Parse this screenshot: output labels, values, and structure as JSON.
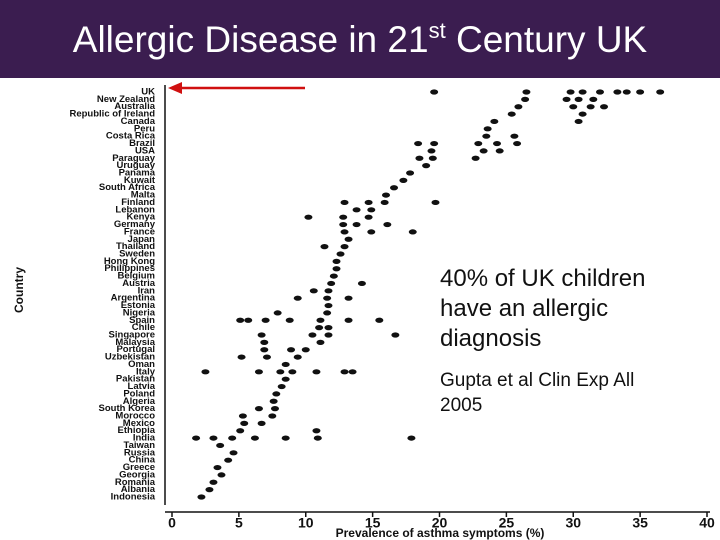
{
  "title_parts": [
    "Allergic Disease in 21",
    "st",
    "Century UK"
  ],
  "annotation": "40% of UK children have an allergic diagnosis",
  "citation": "Gupta et al Clin Exp All 2005",
  "chart_data": {
    "type": "scatter",
    "x_label": "Prevalence of asthma symptoms (%)",
    "y_label": "Country",
    "color": "#111111",
    "xlim": [
      0,
      40
    ],
    "xticks": [
      0,
      5,
      10,
      15,
      20,
      25,
      30,
      35,
      40
    ],
    "categories": [
      "UK",
      "New Zealand",
      "Australia",
      "Republic of Ireland",
      "Canada",
      "Peru",
      "Costa Rica",
      "Brazil",
      "USA",
      "Paraguay",
      "Uruguay",
      "Panama",
      "Kuwait",
      "South Africa",
      "Malta",
      "Finland",
      "Lebanon",
      "Kenya",
      "Germany",
      "France",
      "Japan",
      "Thailand",
      "Sweden",
      "Hong Kong",
      "Philippines",
      "Belgium",
      "Austria",
      "Iran",
      "Argentina",
      "Estonia",
      "Nigeria",
      "Spain",
      "Chile",
      "Singapore",
      "Malaysia",
      "Portugal",
      "Uzbekistan",
      "Oman",
      "Italy",
      "Pakistan",
      "Latvia",
      "Poland",
      "Algeria",
      "South Korea",
      "Morocco",
      "Mexico",
      "Ethiopia",
      "India",
      "Taiwan",
      "Russia",
      "China",
      "Greece",
      "Georgia",
      "Romania",
      "Albania",
      "Indonesia"
    ],
    "values": [
      [
        19.6,
        26.5,
        29.8,
        30.7,
        32,
        33.3,
        34,
        35,
        36.5
      ],
      [
        26.4,
        29.5,
        30.4,
        31.5
      ],
      [
        25.9,
        30,
        31.3,
        32.3
      ],
      [
        25.4,
        30.7
      ],
      [
        24.1,
        30.4
      ],
      [
        23.6
      ],
      [
        23.5,
        25.6
      ],
      [
        18.4,
        19.6,
        22.9,
        24.3,
        25.8
      ],
      [
        19.4,
        23.3,
        24.5
      ],
      [
        18.5,
        19.5,
        22.7
      ],
      [
        19
      ],
      [
        17.8
      ],
      [
        17.3
      ],
      [
        16.6
      ],
      [
        16
      ],
      [
        12.9,
        14.7,
        15.9,
        19.7
      ],
      [
        13.8,
        14.9
      ],
      [
        10.2,
        12.8,
        14.7
      ],
      [
        12.8,
        13.8,
        16.1
      ],
      [
        12.9,
        14.9,
        18
      ],
      [
        13.2
      ],
      [
        11.4,
        12.9
      ],
      [
        12.6
      ],
      [
        12.3
      ],
      [
        12.3
      ],
      [
        12.1
      ],
      [
        11.9,
        14.2
      ],
      [
        10.6,
        11.7
      ],
      [
        9.4,
        11.6,
        13.2
      ],
      [
        11.7
      ],
      [
        7.9,
        11.6
      ],
      [
        5.1,
        5.7,
        7,
        8.8,
        11.1,
        13.2,
        15.5
      ],
      [
        11,
        11.7
      ],
      [
        6.7,
        10.5,
        11.7,
        16.7
      ],
      [
        6.9,
        11.1
      ],
      [
        6.9,
        8.9,
        10
      ],
      [
        5.2,
        7.1,
        9.4
      ],
      [
        8.5
      ],
      [
        2.5,
        6.5,
        8.1,
        9,
        10.8,
        12.9,
        13.5
      ],
      [
        8.5
      ],
      [
        8.2
      ],
      [
        7.8
      ],
      [
        7.6
      ],
      [
        6.5,
        7.7
      ],
      [
        5.3,
        7.5
      ],
      [
        5.4,
        6.7
      ],
      [
        5.1,
        10.8
      ],
      [
        1.8,
        3.1,
        4.5,
        6.2,
        8.5,
        10.9,
        17.9
      ],
      [
        3.6
      ],
      [
        4.6
      ],
      [
        4.2
      ],
      [
        3.4
      ],
      [
        3.7
      ],
      [
        3.1
      ],
      [
        2.8
      ],
      [
        2.2
      ]
    ]
  }
}
